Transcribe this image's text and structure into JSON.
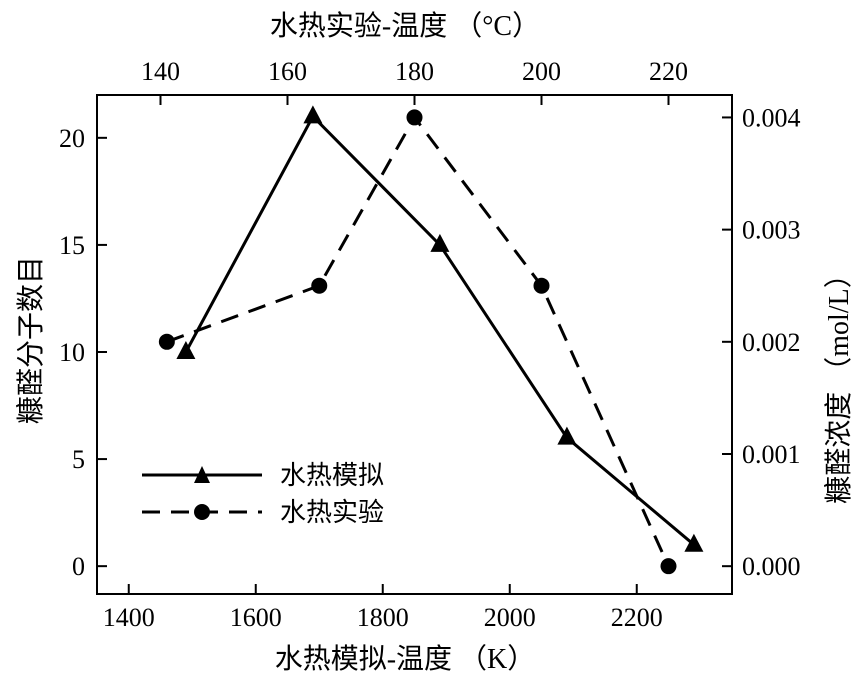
{
  "chart_data": {
    "type": "line",
    "x_bottom": {
      "label": "水热模拟-温度 （K）",
      "range": [
        1350,
        2350
      ],
      "ticks": [
        1400,
        1600,
        1800,
        2000,
        2200
      ]
    },
    "x_top": {
      "label": "水热实验-温度 （°C）",
      "range": [
        130,
        230
      ],
      "ticks": [
        140,
        160,
        180,
        200,
        220
      ]
    },
    "y_left": {
      "label": "糠醛分子数目",
      "range": [
        -1.3,
        22
      ],
      "ticks": [
        0,
        5,
        10,
        15,
        20
      ]
    },
    "y_right": {
      "label": "糠醛浓度 （mol/L）",
      "range": [
        -0.000248,
        0.0042
      ],
      "ticks": [
        "0.000",
        "0.001",
        "0.002",
        "0.003",
        "0.004"
      ],
      "tick_values": [
        0,
        0.001,
        0.002,
        0.003,
        0.004
      ]
    },
    "grid": false,
    "legend": {
      "position": "bottom-left"
    },
    "series": [
      {
        "name": "水热模拟",
        "axes": "bottom-left",
        "marker": "triangle",
        "line_style": "solid",
        "color": "#000000",
        "points": [
          {
            "x": 1490,
            "y": 10
          },
          {
            "x": 1690,
            "y": 21
          },
          {
            "x": 1890,
            "y": 15
          },
          {
            "x": 2090,
            "y": 6
          },
          {
            "x": 2290,
            "y": 1
          }
        ]
      },
      {
        "name": "水热实验",
        "axes": "top-right",
        "marker": "circle",
        "line_style": "dashed",
        "color": "#000000",
        "points": [
          {
            "x": 141,
            "y": 0.002
          },
          {
            "x": 165,
            "y": 0.0025
          },
          {
            "x": 180,
            "y": 0.004
          },
          {
            "x": 200,
            "y": 0.0025
          },
          {
            "x": 220,
            "y": 0.0
          }
        ]
      }
    ]
  }
}
